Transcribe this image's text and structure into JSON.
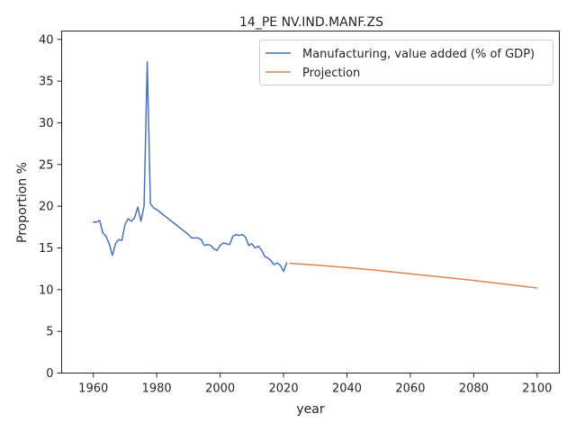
{
  "chart_data": {
    "type": "line",
    "title": "14_PE NV.IND.MANF.ZS",
    "xlabel": "year",
    "ylabel": "Proportion %",
    "xlim": [
      1950,
      2107
    ],
    "ylim": [
      0,
      41
    ],
    "xticks": [
      1960,
      1980,
      2000,
      2020,
      2040,
      2060,
      2080,
      2100
    ],
    "yticks": [
      0,
      5,
      10,
      15,
      20,
      25,
      30,
      35,
      40
    ],
    "grid": false,
    "legend_position": "top-right",
    "colors": {
      "manufacturing": "#4c72b0",
      "projection": "#dd8452",
      "axis": "#262626"
    },
    "series": [
      {
        "name": "Manufacturing, value added (% of GDP)",
        "color": "#4c72b0",
        "x": [
          1960,
          1961,
          1962,
          1963,
          1964,
          1965,
          1966,
          1967,
          1968,
          1969,
          1970,
          1971,
          1972,
          1973,
          1974,
          1975,
          1976,
          1977,
          1978,
          1979,
          1980,
          1981,
          1982,
          1983,
          1984,
          1985,
          1986,
          1987,
          1988,
          1989,
          1990,
          1991,
          1992,
          1993,
          1994,
          1995,
          1996,
          1997,
          1998,
          1999,
          2000,
          2001,
          2002,
          2003,
          2004,
          2005,
          2006,
          2007,
          2008,
          2009,
          2010,
          2011,
          2012,
          2013,
          2014,
          2015,
          2016,
          2017,
          2018,
          2019,
          2020,
          2021
        ],
        "values": [
          18.1,
          18.1,
          18.3,
          16.8,
          16.4,
          15.5,
          14.1,
          15.5,
          16.0,
          15.9,
          17.8,
          18.5,
          18.2,
          18.6,
          19.9,
          18.2,
          20.0,
          37.3,
          20.3,
          19.8,
          19.6,
          19.3,
          19.0,
          18.7,
          18.4,
          18.1,
          17.8,
          17.5,
          17.2,
          16.9,
          16.6,
          16.2,
          16.2,
          16.2,
          16.0,
          15.3,
          15.4,
          15.3,
          14.9,
          14.7,
          15.3,
          15.6,
          15.5,
          15.4,
          16.4,
          16.6,
          16.5,
          16.6,
          16.3,
          15.3,
          15.5,
          15.0,
          15.2,
          14.8,
          14.0,
          13.8,
          13.5,
          13.0,
          13.2,
          12.9,
          12.2,
          13.2
        ]
      },
      {
        "name": "Projection",
        "color": "#dd8452",
        "x": [
          2022,
          2030,
          2040,
          2050,
          2060,
          2070,
          2080,
          2090,
          2100
        ],
        "values": [
          13.15,
          12.95,
          12.65,
          12.3,
          11.9,
          11.5,
          11.1,
          10.65,
          10.2
        ]
      }
    ]
  }
}
